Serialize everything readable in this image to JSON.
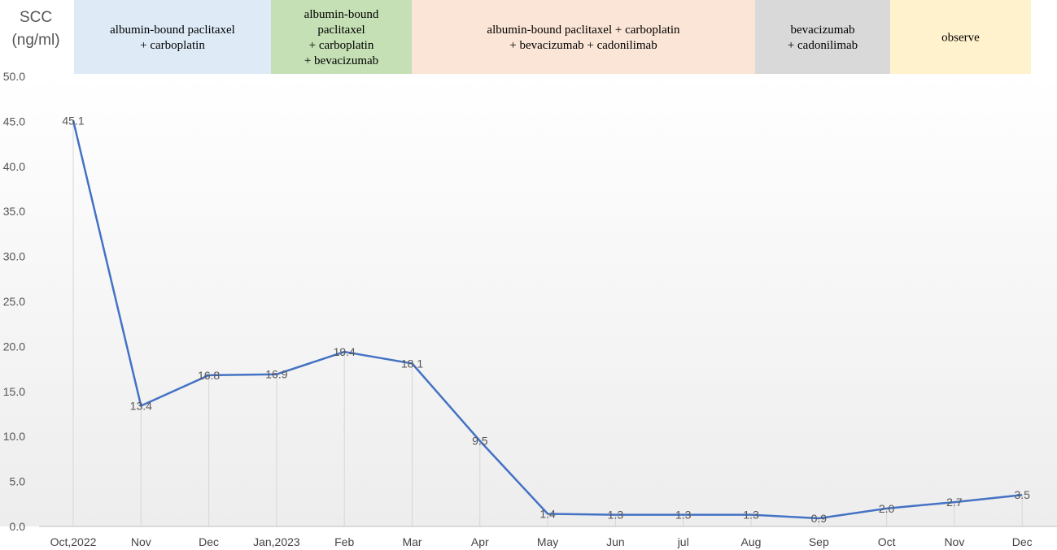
{
  "chart_data": {
    "type": "line",
    "ylabel": [
      "SCC",
      "(ng/ml)"
    ],
    "ylim": [
      0,
      50
    ],
    "yticks": [
      "0.0",
      "5.0",
      "10.0",
      "15.0",
      "20.0",
      "25.0",
      "30.0",
      "35.0",
      "40.0",
      "45.0",
      "50.0"
    ],
    "categories": [
      "Oct,2022",
      "Nov",
      "Dec",
      "Jan,2023",
      "Feb",
      "Mar",
      "Apr",
      "May",
      "Jun",
      "jul",
      "Aug",
      "Sep",
      "Oct",
      "Nov",
      "Dec"
    ],
    "values": [
      45.1,
      13.4,
      16.8,
      16.9,
      19.4,
      18.1,
      9.5,
      1.4,
      1.3,
      1.3,
      1.3,
      0.9,
      2.0,
      2.7,
      3.5
    ],
    "data_labels": [
      "45.1",
      "13.4",
      "16.8",
      "16.9",
      "19.4",
      "18.1",
      "9.5",
      "1.4",
      "1.3",
      "1.3",
      "1.3",
      "0.9",
      "2.0",
      "2.7",
      "3.5"
    ],
    "line_color": "#4472c4",
    "phases": [
      {
        "lines": [
          "albumin-bound paclitaxel",
          "+ carboplatin"
        ],
        "color": "#deebf7",
        "start_month": "Oct,2022",
        "end_month": "Jan,2023"
      },
      {
        "lines": [
          "albumin-bound",
          "paclitaxel",
          "+ carboplatin",
          "+ bevacizumab"
        ],
        "color": "#c5e0b4",
        "start_month": "Feb",
        "end_month": "Feb"
      },
      {
        "lines": [
          "albumin-bound paclitaxel + carboplatin",
          "+ bevacizumab + cadonilimab"
        ],
        "color": "#fbe5d6",
        "start_month": "Mar",
        "end_month": "Aug"
      },
      {
        "lines": [
          "bevacizumab",
          "+ cadonilimab"
        ],
        "color": "#d9d9d9",
        "start_month": "Aug",
        "end_month": "Oct"
      },
      {
        "lines": [
          "observe"
        ],
        "color": "#fff2cc",
        "start_month": "Oct",
        "end_month": "Dec"
      }
    ]
  }
}
